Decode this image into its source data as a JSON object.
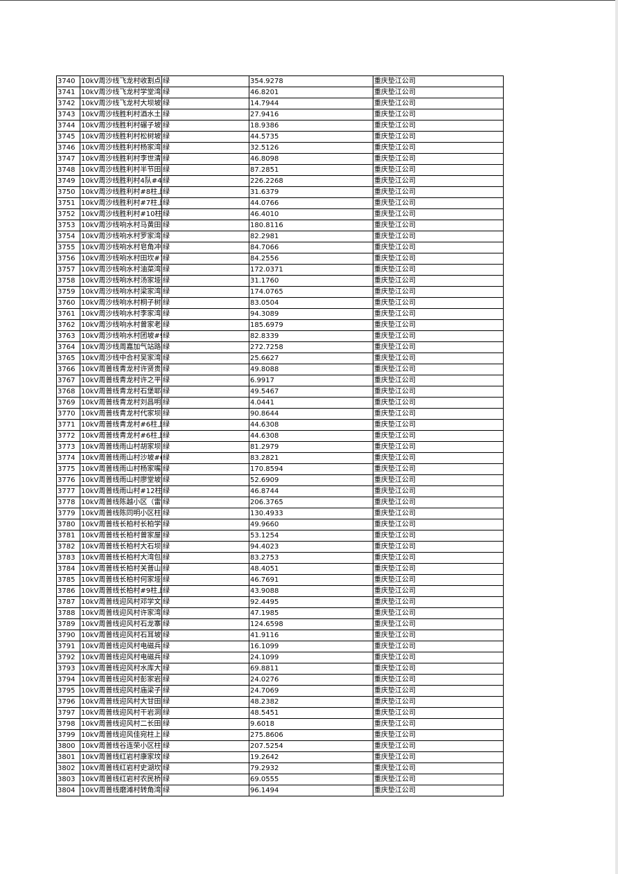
{
  "company": "重庆垫江公司",
  "color_label": "绿",
  "rows": [
    [
      "3740",
      "10kV周沙线飞龙村收割点",
      "354.9278"
    ],
    [
      "3741",
      "10kV周沙线飞龙村学堂湾",
      "46.8201"
    ],
    [
      "3742",
      "10kV周沙线飞龙村大坝坡",
      "14.7944"
    ],
    [
      "3743",
      "10kV周沙线胜利村酒水土",
      "27.9416"
    ],
    [
      "3744",
      "10kV周沙线胜利村碾子坡",
      "18.9386"
    ],
    [
      "3745",
      "10kV周沙线胜利村松树坡",
      "44.5735"
    ],
    [
      "3746",
      "10kV周沙线胜利村杨家湾",
      "32.5126"
    ],
    [
      "3747",
      "10kV周沙线胜利村李世清",
      "46.8098"
    ],
    [
      "3748",
      "10kV周沙线胜利村半节田",
      "87.2851"
    ],
    [
      "3749",
      "10kV周沙线胜利村4队#4",
      "226.2268"
    ],
    [
      "3750",
      "10kV周沙线胜利村#8柱上",
      "31.6379"
    ],
    [
      "3751",
      "10kV周沙线胜利村#7柱上",
      "44.0766"
    ],
    [
      "3752",
      "10kV周沙线胜利村#10柱",
      "46.4010"
    ],
    [
      "3753",
      "10kV周沙线响水村马黄田",
      "180.8116"
    ],
    [
      "3754",
      "10kV周沙线响水村罗家湾",
      "82.2981"
    ],
    [
      "3755",
      "10kV周沙线响水村皂角冲",
      "84.7066"
    ],
    [
      "3756",
      "10kV周沙线响水村田坎#1",
      "84.2556"
    ],
    [
      "3757",
      "10kV周沙线响水村油菜湾",
      "172.0371"
    ],
    [
      "3758",
      "10kV周沙线响水村汤家垭",
      "31.1760"
    ],
    [
      "3759",
      "10kV周沙线响水村梁家湾",
      "174.0765"
    ],
    [
      "3760",
      "10kV周沙线响水村桐子树",
      "83.0504"
    ],
    [
      "3761",
      "10kV周沙线响水村李家湾",
      "94.3089"
    ],
    [
      "3762",
      "10kV周沙线响水村曾家老",
      "185.6979"
    ],
    [
      "3763",
      "10kV周沙线响水村团坡#9",
      "82.8339"
    ],
    [
      "3764",
      "10kV周沙线周嘉加气站路",
      "272.7258"
    ],
    [
      "3765",
      "10kV周沙线中合村吴家湾",
      "25.6627"
    ],
    [
      "3766",
      "10kV周普线青龙村许贤贵",
      "49.8088"
    ],
    [
      "3767",
      "10kV周普线青龙村许之平",
      "6.9917"
    ],
    [
      "3768",
      "10kV周普线青龙村石堡耶",
      "49.5467"
    ],
    [
      "3769",
      "10kV周普线青龙村刘昌明",
      "4.0441"
    ],
    [
      "3770",
      "10kV周普线青龙村代家坝",
      "90.8644"
    ],
    [
      "3771",
      "10kV周普线青龙村#6柱上",
      "44.6308"
    ],
    [
      "3772",
      "10kV周普线青龙村#6柱上",
      "44.6308"
    ],
    [
      "3773",
      "10kV周普线雨山村胡家坝",
      "81.2979"
    ],
    [
      "3774",
      "10kV周普线雨山村沙坡#6",
      "83.2821"
    ],
    [
      "3775",
      "10kV周普线雨山村杨家嘴",
      "170.8594"
    ],
    [
      "3776",
      "10kV周普线雨山村廖堂坡",
      "52.6909"
    ],
    [
      "3777",
      "10kV周普线雨山村#12柱",
      "46.8744"
    ],
    [
      "3778",
      "10kV周普线陈越小区（雷",
      "206.3765"
    ],
    [
      "3779",
      "10kV周普线陈同明小区柱",
      "130.4933"
    ],
    [
      "3780",
      "10kV周普线长柏村长柏学",
      "49.9660"
    ],
    [
      "3781",
      "10kV周普线长柏村曾家屋",
      "53.1254"
    ],
    [
      "3782",
      "10kV周普线长柏村大石坝",
      "94.4023"
    ],
    [
      "3783",
      "10kV周普线长柏村大湾包",
      "83.2753"
    ],
    [
      "3784",
      "10kV周普线长柏村关普山",
      "48.4051"
    ],
    [
      "3785",
      "10kV周普线长柏村何家垭",
      "46.7691"
    ],
    [
      "3786",
      "10kV周普线长柏村#9柱上",
      "43.9088"
    ],
    [
      "3787",
      "10kV周普线迎风村邓学文",
      "92.4495"
    ],
    [
      "3788",
      "10kV周普线迎风村许家湾",
      "47.1985"
    ],
    [
      "3789",
      "10kV周普线迎风村石龙寨",
      "124.6598"
    ],
    [
      "3790",
      "10kV周普线迎风村石耳坡",
      "41.9116"
    ],
    [
      "3791",
      "10kV周普线迎风村电磁兵",
      "16.1099"
    ],
    [
      "3792",
      "10kV周普线迎风村电磁兵",
      "24.1099"
    ],
    [
      "3793",
      "10kV周普线迎风村水库大",
      "69.8811"
    ],
    [
      "3794",
      "10kV周普线迎风村彭家岩",
      "24.0276"
    ],
    [
      "3795",
      "10kV周普线迎风村庙梁子",
      "24.7069"
    ],
    [
      "3796",
      "10kV周普线迎风村大甘田",
      "48.2382"
    ],
    [
      "3797",
      "10kV周普线迎风村干岩洞",
      "48.5451"
    ],
    [
      "3798",
      "10kV周普线迎风村二长田",
      "9.6018"
    ],
    [
      "3799",
      "10kV周普线迎风佳宛柱上",
      "275.8606"
    ],
    [
      "3800",
      "10kV周普线谷连荣小区柱",
      "207.5254"
    ],
    [
      "3801",
      "10kV周普线红岩村康家坟",
      "19.2642"
    ],
    [
      "3802",
      "10kV周普线红岩村史湖坎",
      "79.2932"
    ],
    [
      "3803",
      "10kV周普线红岩村农民桥",
      "69.0555"
    ],
    [
      "3804",
      "10kV周普线磨滩村转角湾",
      "96.1494"
    ]
  ]
}
